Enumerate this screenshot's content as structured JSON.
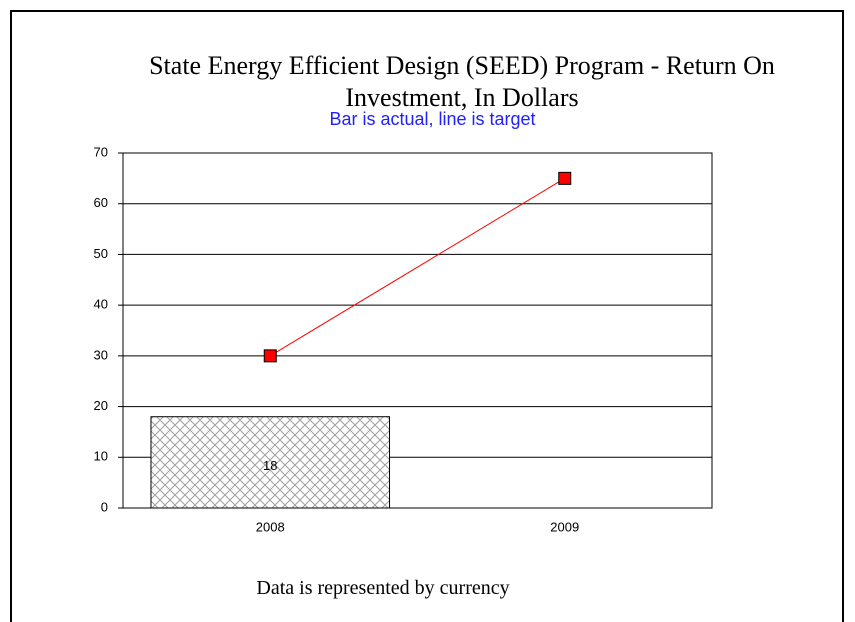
{
  "chart_data": {
    "type": "combo",
    "title": "State Energy Efficient Design (SEED) Program - Return On Investment, In Dollars",
    "subtitle": "Bar is actual, line is target",
    "footer": "Data is represented by currency",
    "categories": [
      "2008",
      "2009"
    ],
    "series": [
      {
        "type": "bar",
        "color": "#808080",
        "values": [
          18,
          null
        ]
      },
      {
        "type": "line",
        "color": "#ff0000",
        "values": [
          30,
          65
        ]
      }
    ],
    "ylim": [
      0,
      70
    ],
    "yticks": [
      0,
      10,
      20,
      30,
      40,
      50,
      60,
      70
    ],
    "grid": true
  }
}
